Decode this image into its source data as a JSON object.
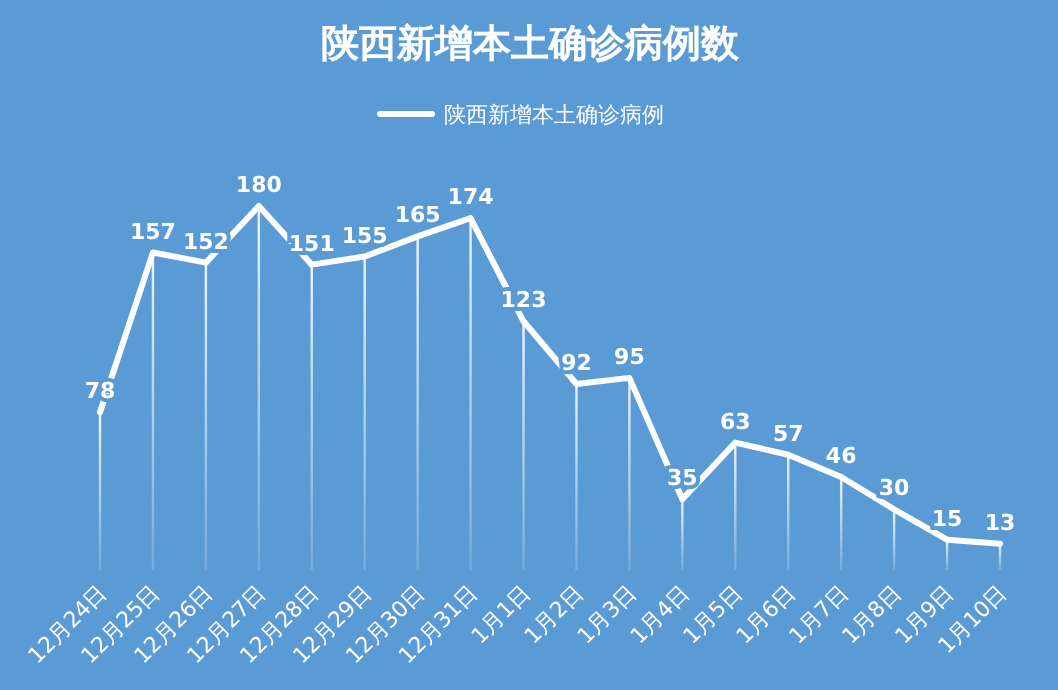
{
  "chart_data": {
    "type": "line",
    "title": "陕西新增本土确诊病例数",
    "categories": [
      "12月24日",
      "12月25日",
      "12月26日",
      "12月27日",
      "12月28日",
      "12月29日",
      "12月30日",
      "12月31日",
      "1月1日",
      "1月2日",
      "1月3日",
      "1月4日",
      "1月5日",
      "1月6日",
      "1月7日",
      "1月8日",
      "1月9日",
      "1月10日"
    ],
    "series": [
      {
        "type": "bar",
        "color": "#ffffff",
        "values": [
          78,
          157,
          152,
          180,
          151,
          155,
          165,
          174,
          123,
          92,
          95,
          35,
          63,
          57,
          46,
          30,
          15,
          13
        ],
        "value_labels": [
          "78",
          "157",
          "152",
          "180",
          "151",
          "155",
          "165",
          "174",
          "123",
          "92",
          "95",
          "35",
          "63",
          "57",
          "46",
          "30",
          "15",
          "13"
        ]
      },
      {
        "name": "陕西新增本土确诊病例",
        "color": "#ffffff",
        "values": [
          78,
          157,
          152,
          180,
          151,
          155,
          165,
          174,
          123,
          92,
          95,
          35,
          63,
          57,
          46,
          30,
          15,
          13
        ]
      }
    ],
    "legend": "top",
    "marker": "none",
    "line_style": "solid"
  }
}
